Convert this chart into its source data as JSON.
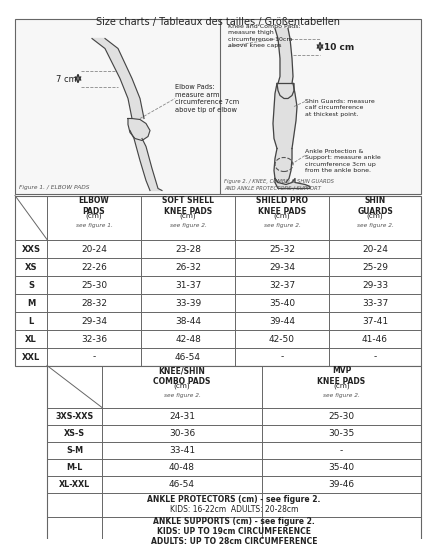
{
  "title": "Size charts / Tableaux des tailles / Größentabellen",
  "table1_header": [
    "",
    "ELBOW\nPADS\n(cm)\nsee figure 1.",
    "SOFT SHELL\nKNEE PADS\n(cm)\nsee figure 2.",
    "SHIELD PRO\nKNEE PADS\n(cm)\nsee figure 2.",
    "SHIN\nGUARDS\n(cm)\nsee figure 2."
  ],
  "table1_rows": [
    [
      "XXS",
      "20-24",
      "23-28",
      "25-32",
      "20-24"
    ],
    [
      "XS",
      "22-26",
      "26-32",
      "29-34",
      "25-29"
    ],
    [
      "S",
      "25-30",
      "31-37",
      "32-37",
      "29-33"
    ],
    [
      "M",
      "28-32",
      "33-39",
      "35-40",
      "33-37"
    ],
    [
      "L",
      "29-34",
      "38-44",
      "39-44",
      "37-41"
    ],
    [
      "XL",
      "32-36",
      "42-48",
      "42-50",
      "41-46"
    ],
    [
      "XXL",
      "-",
      "46-54",
      "-",
      "-"
    ]
  ],
  "table2_header": [
    "",
    "KNEE/SHIN\nCOMBO PADS\n(cm)\nsee figure 2.",
    "MVP\nKNEE PADS\n(cm)\nsee figure 2."
  ],
  "table2_rows": [
    [
      "3XS-XXS",
      "24-31",
      "25-30"
    ],
    [
      "XS-S",
      "30-36",
      "30-35"
    ],
    [
      "S-M",
      "33-41",
      "-"
    ],
    [
      "M-L",
      "40-48",
      "35-40"
    ],
    [
      "XL-XXL",
      "46-54",
      "39-46"
    ]
  ],
  "ankle_protectors_line1": "ANKLE PROTECTORS (cm) - see figure 2.",
  "ankle_protectors_line2": "KIDS: 16-22cm  ADULTS: 20-28cm",
  "ankle_supports_line1": "ANKLE SUPPORTS (cm) - see figure 2.",
  "ankle_supports_line2": "KIDS: UP TO 19cm CIRCUMFERENCE",
  "ankle_supports_line3": "ADULTS: UP TO 28cm CIRCUMFERENCE",
  "fig1_label": "Figure 1. / ELBOW PADS",
  "fig2_label": "Figure 2. / KNEE, COMBO & SHIN GUARDS\nAND ANKLE PROTECTORS / SUPPORT",
  "elbow_note": "Elbow Pads:\nmeasure arm\ncircumference 7cm\nabove tip of elbow",
  "knee_note": "Knee and Combo Pads:\nmeasure thigh\ncircumference 10cm\nabove knee caps",
  "shin_note": "Shin Guards: measure\ncalf circumference\nat thickest point.",
  "ankle_note": "Ankle Protection &\nSupport: measure ankle\ncircumference 3cm up\nfrom the ankle bone.",
  "label_7cm": "7 cm",
  "label_10cm": "10 cm"
}
